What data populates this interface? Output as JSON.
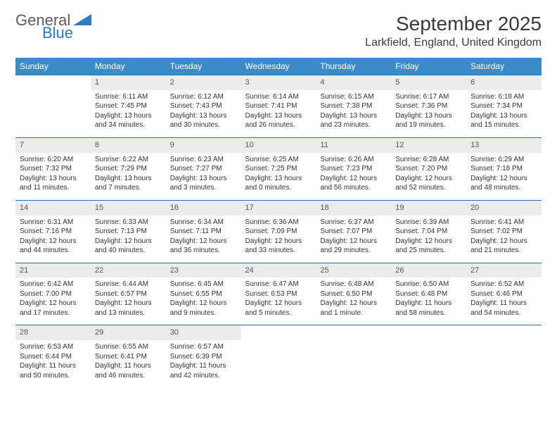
{
  "brand": {
    "word1": "General",
    "word2": "Blue"
  },
  "title": "September 2025",
  "location": "Larkfield, England, United Kingdom",
  "colors": {
    "header_bg": "#3b8bc8",
    "header_text": "#ffffff",
    "daynum_bg": "#ececec",
    "rule": "#2f6fa3",
    "body_text": "#333333",
    "logo_gray": "#5a5a5a",
    "logo_blue": "#2f7bbf",
    "page_bg": "#ffffff"
  },
  "weekdays": [
    "Sunday",
    "Monday",
    "Tuesday",
    "Wednesday",
    "Thursday",
    "Friday",
    "Saturday"
  ],
  "weeks": [
    [
      null,
      {
        "n": "1",
        "sr": "6:11 AM",
        "ss": "7:45 PM",
        "dl": "13 hours and 34 minutes."
      },
      {
        "n": "2",
        "sr": "6:12 AM",
        "ss": "7:43 PM",
        "dl": "13 hours and 30 minutes."
      },
      {
        "n": "3",
        "sr": "6:14 AM",
        "ss": "7:41 PM",
        "dl": "13 hours and 26 minutes."
      },
      {
        "n": "4",
        "sr": "6:15 AM",
        "ss": "7:38 PM",
        "dl": "13 hours and 23 minutes."
      },
      {
        "n": "5",
        "sr": "6:17 AM",
        "ss": "7:36 PM",
        "dl": "13 hours and 19 minutes."
      },
      {
        "n": "6",
        "sr": "6:18 AM",
        "ss": "7:34 PM",
        "dl": "13 hours and 15 minutes."
      }
    ],
    [
      {
        "n": "7",
        "sr": "6:20 AM",
        "ss": "7:32 PM",
        "dl": "13 hours and 11 minutes."
      },
      {
        "n": "8",
        "sr": "6:22 AM",
        "ss": "7:29 PM",
        "dl": "13 hours and 7 minutes."
      },
      {
        "n": "9",
        "sr": "6:23 AM",
        "ss": "7:27 PM",
        "dl": "13 hours and 3 minutes."
      },
      {
        "n": "10",
        "sr": "6:25 AM",
        "ss": "7:25 PM",
        "dl": "13 hours and 0 minutes."
      },
      {
        "n": "11",
        "sr": "6:26 AM",
        "ss": "7:23 PM",
        "dl": "12 hours and 56 minutes."
      },
      {
        "n": "12",
        "sr": "6:28 AM",
        "ss": "7:20 PM",
        "dl": "12 hours and 52 minutes."
      },
      {
        "n": "13",
        "sr": "6:29 AM",
        "ss": "7:18 PM",
        "dl": "12 hours and 48 minutes."
      }
    ],
    [
      {
        "n": "14",
        "sr": "6:31 AM",
        "ss": "7:16 PM",
        "dl": "12 hours and 44 minutes."
      },
      {
        "n": "15",
        "sr": "6:33 AM",
        "ss": "7:13 PM",
        "dl": "12 hours and 40 minutes."
      },
      {
        "n": "16",
        "sr": "6:34 AM",
        "ss": "7:11 PM",
        "dl": "12 hours and 36 minutes."
      },
      {
        "n": "17",
        "sr": "6:36 AM",
        "ss": "7:09 PM",
        "dl": "12 hours and 33 minutes."
      },
      {
        "n": "18",
        "sr": "6:37 AM",
        "ss": "7:07 PM",
        "dl": "12 hours and 29 minutes."
      },
      {
        "n": "19",
        "sr": "6:39 AM",
        "ss": "7:04 PM",
        "dl": "12 hours and 25 minutes."
      },
      {
        "n": "20",
        "sr": "6:41 AM",
        "ss": "7:02 PM",
        "dl": "12 hours and 21 minutes."
      }
    ],
    [
      {
        "n": "21",
        "sr": "6:42 AM",
        "ss": "7:00 PM",
        "dl": "12 hours and 17 minutes."
      },
      {
        "n": "22",
        "sr": "6:44 AM",
        "ss": "6:57 PM",
        "dl": "12 hours and 13 minutes."
      },
      {
        "n": "23",
        "sr": "6:45 AM",
        "ss": "6:55 PM",
        "dl": "12 hours and 9 minutes."
      },
      {
        "n": "24",
        "sr": "6:47 AM",
        "ss": "6:53 PM",
        "dl": "12 hours and 5 minutes."
      },
      {
        "n": "25",
        "sr": "6:48 AM",
        "ss": "6:50 PM",
        "dl": "12 hours and 1 minute."
      },
      {
        "n": "26",
        "sr": "6:50 AM",
        "ss": "6:48 PM",
        "dl": "11 hours and 58 minutes."
      },
      {
        "n": "27",
        "sr": "6:52 AM",
        "ss": "6:46 PM",
        "dl": "11 hours and 54 minutes."
      }
    ],
    [
      {
        "n": "28",
        "sr": "6:53 AM",
        "ss": "6:44 PM",
        "dl": "11 hours and 50 minutes."
      },
      {
        "n": "29",
        "sr": "6:55 AM",
        "ss": "6:41 PM",
        "dl": "11 hours and 46 minutes."
      },
      {
        "n": "30",
        "sr": "6:57 AM",
        "ss": "6:39 PM",
        "dl": "11 hours and 42 minutes."
      },
      null,
      null,
      null,
      null
    ]
  ],
  "labels": {
    "sunrise": "Sunrise:",
    "sunset": "Sunset:",
    "daylight": "Daylight:"
  }
}
